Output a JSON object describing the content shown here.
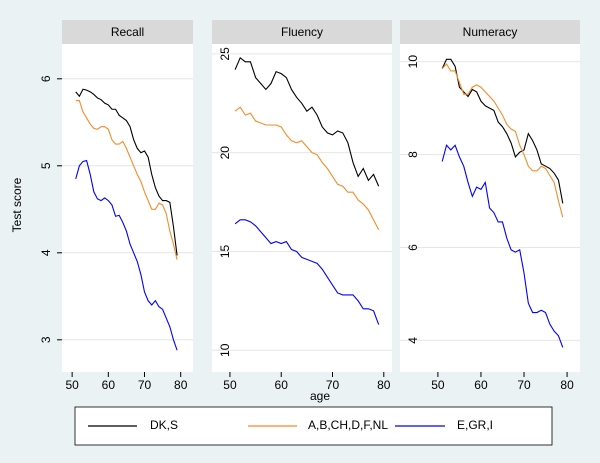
{
  "chart_data": [
    {
      "type": "line",
      "title": "Recall",
      "ylabel": "Test score",
      "x": [
        51,
        52,
        53,
        54,
        55,
        56,
        57,
        58,
        59,
        60,
        61,
        62,
        63,
        64,
        65,
        66,
        67,
        68,
        69,
        70,
        71,
        72,
        73,
        74,
        75,
        76,
        77,
        78,
        79
      ],
      "xlim": [
        47.2,
        83.4
      ],
      "xticks": [
        50,
        60,
        70,
        80
      ],
      "ylim": [
        2.63,
        6.4
      ],
      "yticks": [
        3,
        4,
        5,
        6
      ],
      "grid": true,
      "series": [
        {
          "name": "DK,S",
          "color": "#000000",
          "values": [
            5.85,
            5.8,
            5.88,
            5.87,
            5.85,
            5.82,
            5.78,
            5.76,
            5.72,
            5.7,
            5.65,
            5.65,
            5.58,
            5.55,
            5.52,
            5.45,
            5.3,
            5.2,
            5.15,
            5.17,
            5.1,
            4.9,
            4.75,
            4.65,
            4.6,
            4.6,
            4.58,
            4.3,
            3.97
          ]
        },
        {
          "name": "A,B,CH,D,F,NL",
          "color": "#f28c28",
          "values": [
            5.75,
            5.75,
            5.62,
            5.55,
            5.48,
            5.43,
            5.42,
            5.45,
            5.45,
            5.42,
            5.3,
            5.25,
            5.25,
            5.28,
            5.2,
            5.1,
            5.0,
            4.9,
            4.82,
            4.7,
            4.6,
            4.5,
            4.5,
            4.57,
            4.55,
            4.45,
            4.25,
            4.1,
            3.92
          ]
        },
        {
          "name": "E,GR,I",
          "color": "#0000ff",
          "values": [
            4.85,
            5.0,
            5.05,
            5.06,
            4.9,
            4.7,
            4.62,
            4.6,
            4.63,
            4.6,
            4.55,
            4.42,
            4.43,
            4.35,
            4.25,
            4.1,
            4.0,
            3.9,
            3.75,
            3.55,
            3.45,
            3.4,
            3.45,
            3.38,
            3.35,
            3.25,
            3.15,
            3.0,
            2.88
          ]
        }
      ]
    },
    {
      "type": "line",
      "title": "Fluency",
      "xlabel": "age",
      "x": [
        51,
        52,
        53,
        54,
        55,
        56,
        57,
        58,
        59,
        60,
        61,
        62,
        63,
        64,
        65,
        66,
        67,
        68,
        69,
        70,
        71,
        72,
        73,
        74,
        75,
        76,
        77,
        78,
        79
      ],
      "xlim": [
        46.5,
        81.6
      ],
      "xticks": [
        50,
        60,
        70,
        80
      ],
      "ylim": [
        8.9,
        25.5
      ],
      "yticks": [
        10,
        15,
        20,
        25
      ],
      "grid": true,
      "series": [
        {
          "color": "#000000",
          "values": [
            24.2,
            24.8,
            24.6,
            24.6,
            23.8,
            23.5,
            23.2,
            23.5,
            24.1,
            24.0,
            23.8,
            23.2,
            22.8,
            22.5,
            22.1,
            22.3,
            21.9,
            21.3,
            21.0,
            20.9,
            21.1,
            21.0,
            20.5,
            19.5,
            18.8,
            19.2,
            18.6,
            18.9,
            18.3
          ]
        },
        {
          "color": "#f28c28",
          "values": [
            22.1,
            22.3,
            21.9,
            22.0,
            21.6,
            21.5,
            21.4,
            21.4,
            21.4,
            21.3,
            20.9,
            20.6,
            20.5,
            20.6,
            20.3,
            20.0,
            19.9,
            19.5,
            19.2,
            18.8,
            18.4,
            18.3,
            18.0,
            18.0,
            17.6,
            17.4,
            17.1,
            16.6,
            16.1
          ]
        },
        {
          "color": "#0000ff",
          "values": [
            16.4,
            16.6,
            16.6,
            16.5,
            16.3,
            16.0,
            15.7,
            15.4,
            15.5,
            15.4,
            15.5,
            15.1,
            15.0,
            14.7,
            14.6,
            14.5,
            14.4,
            14.1,
            13.7,
            13.3,
            12.9,
            12.8,
            12.8,
            12.8,
            12.5,
            12.1,
            12.1,
            12.0,
            11.3
          ]
        }
      ]
    },
    {
      "type": "line",
      "title": "Numeracy",
      "x": [
        51,
        52,
        53,
        54,
        55,
        56,
        57,
        58,
        59,
        60,
        61,
        62,
        63,
        64,
        65,
        66,
        67,
        68,
        69,
        70,
        71,
        72,
        73,
        74,
        75,
        76,
        77,
        78,
        79
      ],
      "xlim": [
        41.2,
        83.0
      ],
      "xticks": [
        50,
        60,
        70,
        80
      ],
      "ylim": [
        3.32,
        10.38
      ],
      "yticks": [
        4,
        6,
        8,
        10
      ],
      "grid": true,
      "series": [
        {
          "color": "#000000",
          "values": [
            9.85,
            10.05,
            10.05,
            9.9,
            9.45,
            9.35,
            9.25,
            9.4,
            9.35,
            9.15,
            9.05,
            9.0,
            8.95,
            8.7,
            8.6,
            8.45,
            8.25,
            7.95,
            8.05,
            8.1,
            8.45,
            8.3,
            8.1,
            7.8,
            7.75,
            7.7,
            7.6,
            7.45,
            6.95
          ]
        },
        {
          "color": "#f28c28",
          "values": [
            9.85,
            9.95,
            9.8,
            9.8,
            9.55,
            9.3,
            9.3,
            9.45,
            9.5,
            9.45,
            9.35,
            9.25,
            9.15,
            9.0,
            8.85,
            8.65,
            8.55,
            8.5,
            8.2,
            8.0,
            7.75,
            7.65,
            7.65,
            7.75,
            7.7,
            7.55,
            7.4,
            7.0,
            6.65
          ]
        },
        {
          "color": "#0000ff",
          "values": [
            7.85,
            8.2,
            8.1,
            8.2,
            7.95,
            7.75,
            7.4,
            7.1,
            7.3,
            7.25,
            7.4,
            6.85,
            6.75,
            6.55,
            6.55,
            6.2,
            5.95,
            5.9,
            5.95,
            5.45,
            4.8,
            4.6,
            4.6,
            4.65,
            4.6,
            4.35,
            4.2,
            4.1,
            3.85
          ]
        }
      ]
    }
  ]
}
